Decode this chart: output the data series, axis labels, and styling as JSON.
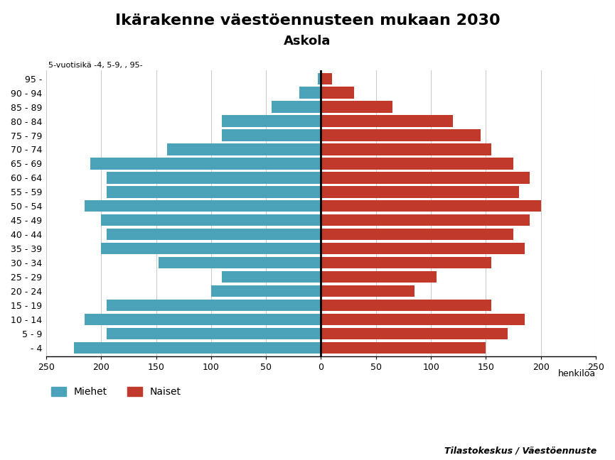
{
  "title": "Ikärakenne väestöennusteen mukaan 2030",
  "subtitle": "Askola",
  "label_note": "5-vuotisikä -4, 5-9, , 95-",
  "xlabel": "henkilöä",
  "legend_male": "Miehet",
  "legend_female": "Naiset",
  "source": "Tilastokeskus / Väestöennuste",
  "age_groups": [
    "- 4",
    "5 - 9",
    "10 - 14",
    "15 - 19",
    "20 - 24",
    "25 - 29",
    "30 - 34",
    "35 - 39",
    "40 - 44",
    "45 - 49",
    "50 - 54",
    "55 - 59",
    "60 - 64",
    "65 - 69",
    "70 - 74",
    "75 - 79",
    "80 - 84",
    "85 - 89",
    "90 - 94",
    "95 -"
  ],
  "males": [
    225,
    195,
    215,
    195,
    100,
    90,
    148,
    200,
    195,
    200,
    215,
    195,
    195,
    210,
    140,
    90,
    90,
    45,
    20,
    3
  ],
  "females": [
    150,
    170,
    185,
    155,
    85,
    105,
    155,
    185,
    175,
    190,
    200,
    180,
    190,
    175,
    155,
    145,
    120,
    65,
    30,
    10
  ],
  "male_color": "#4aa3b8",
  "female_color": "#c0392b",
  "xlim": 250,
  "background_color": "#ffffff",
  "grid_color": "#cccccc",
  "axis_line_color": "#000000",
  "bar_height": 0.82,
  "title_fontsize": 16,
  "subtitle_fontsize": 13,
  "tick_fontsize": 9,
  "legend_fontsize": 10
}
